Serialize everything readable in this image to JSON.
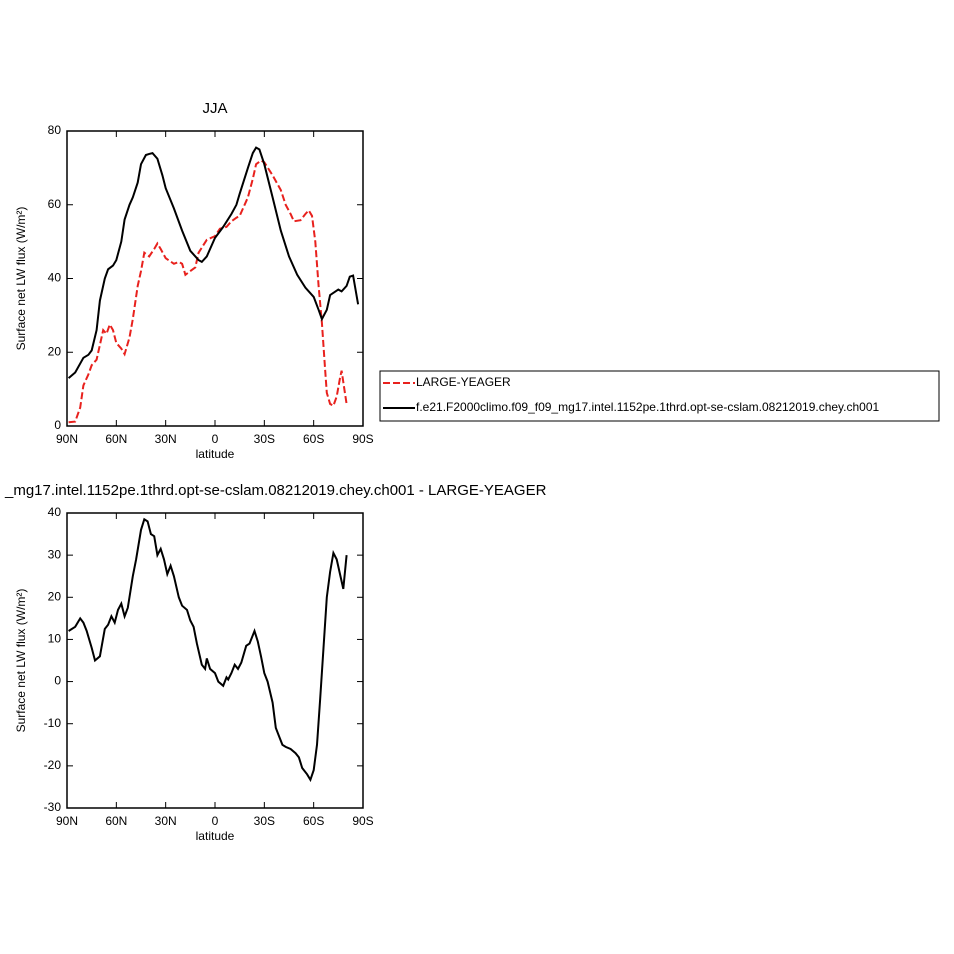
{
  "chart_data": [
    {
      "type": "line",
      "title": "JJA",
      "xlabel": "latitude",
      "ylabel": "Surface net LW flux (W/m²)",
      "xlim": [
        90,
        -90
      ],
      "xticks": [
        {
          "value": 90,
          "label": "90N"
        },
        {
          "value": 60,
          "label": "60N"
        },
        {
          "value": 30,
          "label": "30N"
        },
        0,
        {
          "value": -30,
          "label": "30S"
        },
        {
          "value": -60,
          "label": "60S"
        },
        {
          "value": -90,
          "label": "90S"
        }
      ],
      "ylim": [
        0,
        80
      ],
      "yticks": [
        0,
        20,
        40,
        60,
        80
      ],
      "series": [
        {
          "name": "LARGE-YEAGER",
          "color": "#e8211d",
          "dash": true,
          "x": [
            89,
            85,
            82,
            80,
            77,
            75,
            72,
            70,
            68,
            66,
            64,
            62,
            60,
            57,
            55,
            52,
            50,
            47,
            45,
            43,
            40,
            37,
            35,
            33,
            30,
            25,
            22,
            20,
            18,
            15,
            12,
            10,
            5,
            0,
            -3,
            -7,
            -10,
            -13,
            -15,
            -18,
            -20,
            -23,
            -25,
            -28,
            -30,
            -35,
            -40,
            -43,
            -46,
            -48,
            -52,
            -55,
            -57,
            -59,
            -61,
            -63,
            -65,
            -67,
            -68,
            -70,
            -72,
            -74,
            -76,
            -77,
            -79,
            -80
          ],
          "values": [
            1,
            1.2,
            5,
            11,
            14,
            16.5,
            18,
            22,
            26,
            25,
            27.5,
            26,
            22.5,
            21,
            19.5,
            24,
            29,
            38,
            42,
            47,
            46,
            48,
            49.5,
            48,
            45.5,
            44,
            44.5,
            44,
            41,
            42,
            43,
            47,
            50.5,
            51.5,
            53.5,
            54,
            55.5,
            56.5,
            57,
            60,
            62,
            67,
            71,
            72,
            71.5,
            68,
            64,
            60,
            57.5,
            55.5,
            55.8,
            57.5,
            58.5,
            57,
            50,
            38,
            28,
            15,
            9,
            6,
            5.5,
            8,
            13,
            15,
            9,
            6
          ]
        },
        {
          "name": "f.e21.F2000climo.f09_f09_mg17.intel.1152pe.1thrd.opt-se-cslam.08212019.chey.ch001",
          "color": "#000000",
          "dash": false,
          "x": [
            89,
            85,
            80,
            77,
            75,
            72,
            70,
            67,
            65,
            62,
            60,
            57,
            55,
            52,
            50,
            47,
            45,
            42,
            40,
            38,
            35,
            32,
            30,
            25,
            20,
            15,
            10,
            8,
            5,
            0,
            -5,
            -10,
            -13,
            -15,
            -20,
            -23,
            -25,
            -27,
            -30,
            -35,
            -40,
            -45,
            -50,
            -55,
            -60,
            -63,
            -65,
            -68,
            -70,
            -75,
            -77,
            -80,
            -82,
            -84,
            -87
          ],
          "values": [
            13,
            14.5,
            18.5,
            19.3,
            20.5,
            26,
            34,
            40,
            42.5,
            43.5,
            45,
            50,
            56,
            60,
            62,
            66,
            71,
            73.5,
            73.8,
            74,
            72.5,
            68,
            64.5,
            59,
            53,
            47.5,
            45,
            44.5,
            46,
            51,
            54,
            57.5,
            60,
            63,
            70,
            74,
            75.5,
            75,
            71,
            62,
            53,
            46,
            41,
            37.5,
            35,
            31.5,
            29,
            31.5,
            35.5,
            37,
            36.5,
            38,
            40.5,
            40.8,
            33
          ]
        }
      ]
    },
    {
      "type": "line",
      "title": "_mg17.intel.1152pe.1thrd.opt-se-cslam.08212019.chey.ch001 - LARGE-YEAGER",
      "xlabel": "latitude",
      "ylabel": "Surface net LW flux (W/m²)",
      "xlim": [
        90,
        -90
      ],
      "xticks": [
        {
          "value": 90,
          "label": "90N"
        },
        {
          "value": 60,
          "label": "60N"
        },
        {
          "value": 30,
          "label": "30N"
        },
        0,
        {
          "value": -30,
          "label": "30S"
        },
        {
          "value": -60,
          "label": "60S"
        },
        {
          "value": -90,
          "label": "90S"
        }
      ],
      "ylim": [
        -30,
        40
      ],
      "yticks": [
        -30,
        -20,
        -10,
        0,
        10,
        20,
        30,
        40
      ],
      "series": [
        {
          "color": "#000000",
          "dash": false,
          "x": [
            89,
            85,
            82,
            80,
            78,
            75,
            73,
            70,
            67,
            65,
            63,
            61,
            59,
            57,
            55,
            53,
            50,
            48,
            45,
            43,
            41,
            39,
            37,
            35,
            33,
            31,
            29,
            27,
            25,
            22,
            20,
            17,
            15,
            13,
            11,
            8,
            6,
            5,
            3,
            0,
            -2,
            -5,
            -7,
            -8,
            -10,
            -12,
            -14,
            -16,
            -19,
            -21,
            -24,
            -26,
            -28,
            -30,
            -32,
            -35,
            -37,
            -39,
            -41,
            -43,
            -46,
            -49,
            -51,
            -53,
            -56,
            -58,
            -60,
            -62,
            -64,
            -66,
            -68,
            -70,
            -72,
            -74,
            -78,
            -80
          ],
          "values": [
            12,
            13,
            15,
            14,
            12,
            8,
            5,
            6,
            12.5,
            13.5,
            15.5,
            14,
            17,
            18.5,
            15.5,
            17.5,
            25,
            29,
            36,
            38.5,
            38,
            35,
            34.5,
            30,
            31.5,
            29,
            25.5,
            27.5,
            25,
            20,
            18,
            17,
            14.5,
            13,
            9,
            4,
            3,
            5.5,
            3,
            2,
            0,
            -1,
            1,
            0.5,
            2,
            4,
            3,
            4.5,
            8.5,
            9,
            12,
            9.5,
            6,
            2,
            0,
            -5,
            -11,
            -13,
            -15,
            -15.5,
            -16,
            -17,
            -18,
            -20.5,
            -22,
            -23.3,
            -21,
            -15,
            -4,
            8,
            20,
            26,
            30.5,
            29,
            22,
            30
          ]
        }
      ]
    }
  ]
}
